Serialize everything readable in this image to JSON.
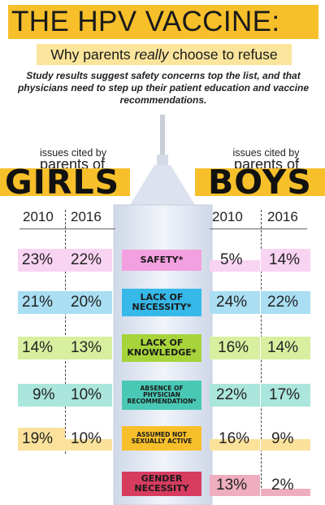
{
  "header": {
    "title": "THE HPV VACCINE:",
    "subtitle_pre": "Why parents ",
    "subtitle_em": "really",
    "subtitle_post": " choose to refuse",
    "intro": "Study results suggest safety concerns top the list, and that physicians need to step up their patient education and vaccine recommendations."
  },
  "girls": {
    "issues_label": "issues cited by",
    "parents_label": "parents of",
    "title": "GIRLS",
    "year_a": "2010",
    "year_b": "2016"
  },
  "boys": {
    "issues_label": "issues cited by",
    "parents_label": "parents of",
    "title": "BOYS",
    "year_a": "2010",
    "year_b": "2016"
  },
  "colors": {
    "gold": "#f7c02a",
    "pale_gold": "#fbe59c",
    "syringe": "#e3e9f3"
  },
  "rows": [
    {
      "label": "SAFETY*",
      "color": "#f3a0e0",
      "light": "#f9d3f2",
      "girls_2010": "23%",
      "girls_2016": "22%",
      "boys_2010": "5%",
      "boys_2016": "14%",
      "boys_2010_fill": 0.25,
      "boys_2016_fill": 1.0
    },
    {
      "label": "LACK OF NECESSITY*",
      "color": "#36b8e8",
      "light": "#a9def3",
      "girls_2010": "21%",
      "girls_2016": "20%",
      "boys_2010": "24%",
      "boys_2016": "22%",
      "boys_2010_fill": 1.0,
      "boys_2016_fill": 1.0
    },
    {
      "label": "LACK OF KNOWLEDGE*",
      "color": "#a6d43a",
      "light": "#d8ef9f",
      "girls_2010": "14%",
      "girls_2016": "13%",
      "boys_2010": "16%",
      "boys_2016": "14%",
      "boys_2010_fill": 1.0,
      "boys_2016_fill": 1.0
    },
    {
      "label": "ABSENCE OF PHYSICIAN RECOMMENDATION*",
      "color": "#49c9b5",
      "light": "#abe6dc",
      "girls_2010": "9%",
      "girls_2016": "10%",
      "boys_2010": "22%",
      "boys_2016": "17%",
      "boys_2010_fill": 1.0,
      "boys_2016_fill": 1.0
    },
    {
      "label": "ASSUMED NOT SEXUALLY ACTIVE",
      "color": "#f7c02a",
      "light": "#fbe19a",
      "girls_2010": "19%",
      "girls_2016": "10%",
      "boys_2010": "16%",
      "boys_2016": "9%",
      "boys_2010_fill": 1.0,
      "boys_2016_fill": 1.0
    },
    {
      "label": "GENDER NECESSITY",
      "color": "#d73c5f",
      "light": "#eeaec0",
      "girls_2010": "",
      "girls_2016": "",
      "boys_2010": "13%",
      "boys_2016": "2%",
      "boys_2010_fill": 1.0,
      "boys_2016_fill": 0.08
    }
  ]
}
